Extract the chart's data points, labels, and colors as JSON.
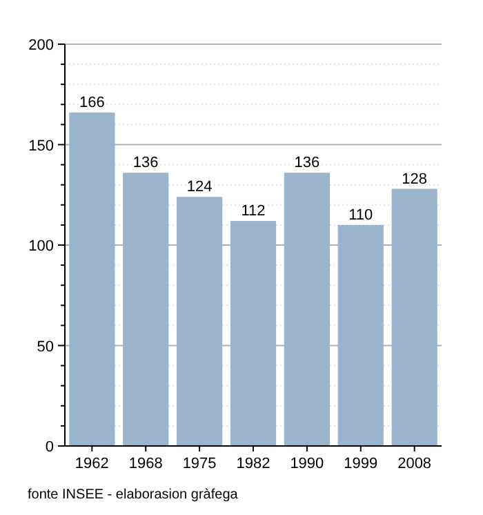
{
  "chart_data": {
    "type": "bar",
    "categories": [
      "1962",
      "1968",
      "1975",
      "1982",
      "1990",
      "1999",
      "2008"
    ],
    "values": [
      166,
      136,
      124,
      112,
      136,
      110,
      128
    ],
    "color": "#9bb4cd",
    "ylim": [
      0,
      200
    ],
    "yticks": [
      0,
      {
        "value": 10,
        "label": null
      },
      {
        "value": 20,
        "label": null
      },
      {
        "value": 30,
        "label": null
      },
      {
        "value": 40,
        "label": null
      },
      50,
      {
        "value": 60,
        "label": null
      },
      {
        "value": 70,
        "label": null
      },
      {
        "value": 80,
        "label": null
      },
      {
        "value": 90,
        "label": null
      },
      100,
      {
        "value": 110,
        "label": null
      },
      {
        "value": 120,
        "label": null
      },
      {
        "value": 130,
        "label": null
      },
      {
        "value": 140,
        "label": null
      },
      150,
      {
        "value": 160,
        "label": null
      },
      {
        "value": 170,
        "label": null
      },
      {
        "value": 180,
        "label": null
      },
      {
        "value": 190,
        "label": null
      },
      200
    ],
    "grid": true,
    "data_labels": true,
    "annotations": [
      "fonte INSEE - elaborasion gràfega"
    ]
  }
}
